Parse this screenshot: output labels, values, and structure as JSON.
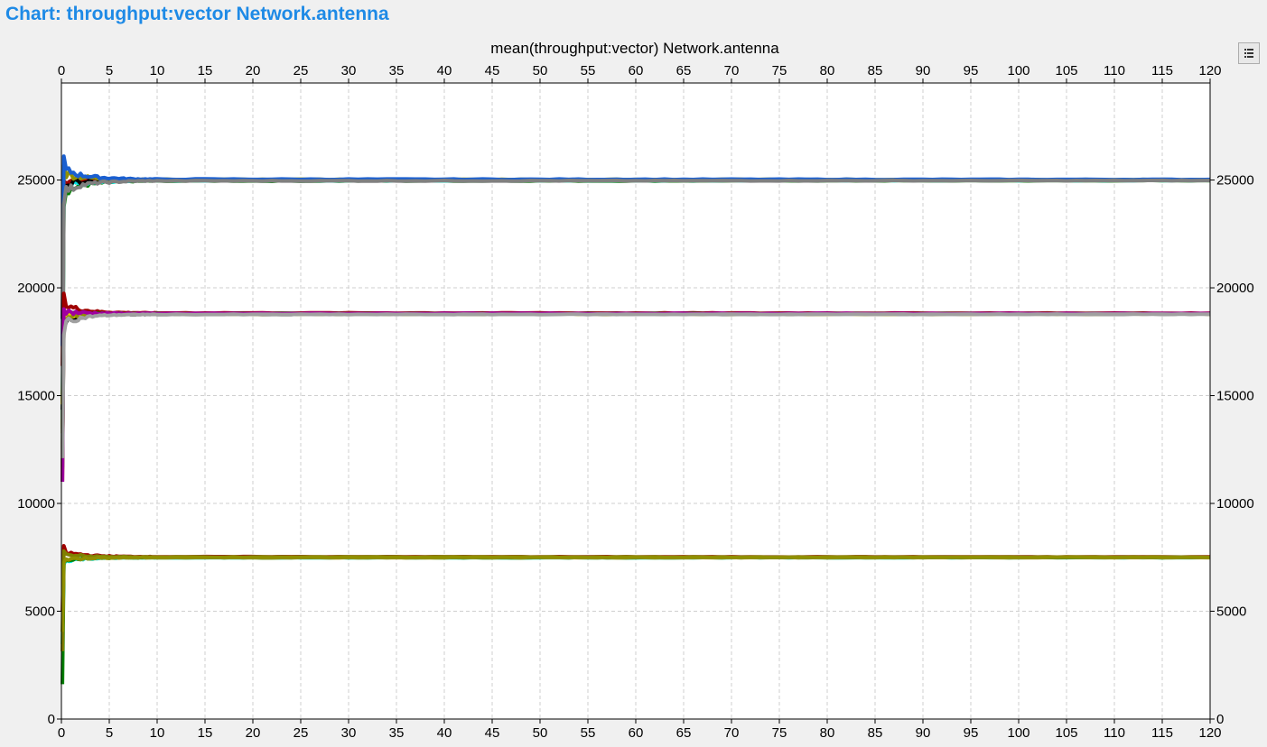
{
  "header": {
    "title": "Chart: throughput:vector Network.antenna"
  },
  "toolbar": {
    "legend_icon": "list-icon"
  },
  "chart_data": {
    "type": "line",
    "title": "mean(throughput:vector) Network.antenna",
    "xlabel": "",
    "ylabel": "",
    "xlim": [
      0,
      120
    ],
    "ylim": [
      0,
      29500
    ],
    "x_ticks": [
      0,
      5,
      10,
      15,
      20,
      25,
      30,
      35,
      40,
      45,
      50,
      55,
      60,
      65,
      70,
      75,
      80,
      85,
      90,
      95,
      100,
      105,
      110,
      115,
      120
    ],
    "y_ticks": [
      0,
      5000,
      10000,
      15000,
      20000,
      25000
    ],
    "grid": true,
    "legend": "none",
    "series_groups": [
      {
        "target": 25000,
        "start": 12000,
        "spread": [
          1200,
          1000,
          600,
          450,
          300,
          250,
          200,
          150,
          120,
          100
        ],
        "colors": [
          "#a00000",
          "#008000",
          "#00e5e5",
          "#000000",
          "#909000",
          "#1a5fd0",
          "#808080"
        ]
      },
      {
        "target": 18800,
        "start": 11000,
        "spread": [
          900,
          700,
          450,
          300,
          200,
          150,
          120,
          100,
          90,
          80
        ],
        "colors": [
          "#000000",
          "#a00000",
          "#008000",
          "#e6d000",
          "#909000",
          "#a000a0",
          "#a0a0a0"
        ]
      },
      {
        "target": 7500,
        "start": 1500,
        "spread": [
          500,
          400,
          300,
          200,
          150,
          120,
          100,
          80,
          70,
          60
        ],
        "colors": [
          "#a00000",
          "#00e5e5",
          "#008000",
          "#808000",
          "#909000"
        ]
      }
    ]
  }
}
